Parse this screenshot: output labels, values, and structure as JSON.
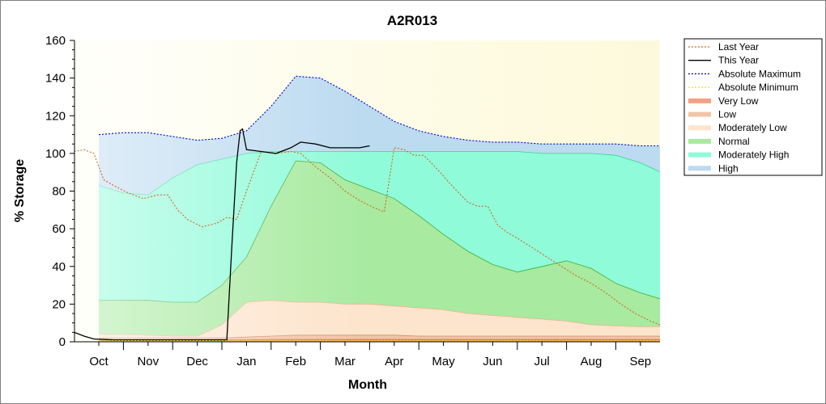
{
  "chart_data": {
    "type": "area",
    "title": "A2R013",
    "xlabel": "Month",
    "ylabel": "% Storage",
    "ylim": [
      0,
      160
    ],
    "xlim": [
      0,
      11.5
    ],
    "yticks": [
      0,
      20,
      40,
      60,
      80,
      100,
      120,
      140,
      160
    ],
    "categories": [
      "Oct",
      "Nov",
      "Dec",
      "Jan",
      "Feb",
      "Mar",
      "Apr",
      "May",
      "Jun",
      "Jul",
      "Aug",
      "Sep"
    ],
    "legend_position": "right",
    "background_colors": [
      "#fffff4",
      "#fdf9dc"
    ],
    "bands": [
      {
        "name": "High",
        "color": "#bcdaf0",
        "x": [
          0,
          0.5,
          1,
          1.5,
          2,
          2.5,
          3,
          3.5,
          4,
          4.5,
          5,
          5.5,
          6,
          6.5,
          7,
          7.5,
          8,
          8.5,
          9,
          9.5,
          10,
          10.5,
          11,
          11.5
        ],
        "values": [
          110,
          111,
          111,
          109,
          107,
          108,
          112,
          125,
          141,
          140,
          133,
          125,
          117,
          112,
          109,
          107,
          106,
          106,
          105,
          105,
          105,
          105,
          104,
          104
        ]
      },
      {
        "name": "Moderately High",
        "color": "#8ffbd9",
        "x": [
          0,
          0.5,
          1,
          1.5,
          2,
          2.5,
          3,
          3.5,
          4,
          4.5,
          5,
          5.5,
          6,
          6.5,
          7,
          7.5,
          8,
          8.5,
          9,
          9.5,
          10,
          10.5,
          11,
          11.5
        ],
        "values": [
          83,
          79,
          78,
          87,
          94,
          97,
          100,
          101,
          101,
          101,
          101,
          101,
          101,
          101,
          101,
          101,
          101,
          101,
          100,
          100,
          100,
          99,
          95,
          89
        ]
      },
      {
        "name": "Normal",
        "color": "#a8eaa0",
        "x": [
          0,
          0.5,
          1,
          1.5,
          2,
          2.5,
          3,
          3.5,
          4,
          4.5,
          5,
          5.5,
          6,
          6.5,
          7,
          7.5,
          8,
          8.5,
          9,
          9.5,
          10,
          10.5,
          11,
          11.5
        ],
        "values": [
          22,
          22,
          22,
          21,
          21,
          30,
          45,
          72,
          96,
          95,
          86,
          81,
          76,
          67,
          57,
          48,
          41,
          37,
          40,
          43,
          39,
          31,
          26,
          22
        ]
      },
      {
        "name": "Moderately Low",
        "color": "#fde4cc",
        "x": [
          0,
          0.5,
          1,
          1.5,
          2,
          2.5,
          3,
          3.5,
          4,
          4.5,
          5,
          5.5,
          6,
          6.5,
          7,
          7.5,
          8,
          8.5,
          9,
          9.5,
          10,
          10.5,
          11,
          11.5
        ],
        "values": [
          4,
          4,
          3.5,
          3,
          3,
          9,
          21,
          22,
          21,
          21,
          20,
          20,
          19,
          18,
          17,
          15,
          14,
          13,
          12,
          11,
          9,
          8.5,
          8,
          8
        ]
      },
      {
        "name": "Low",
        "color": "#f0c4a8",
        "x": [
          0,
          0.5,
          1,
          1.5,
          2,
          2.5,
          3,
          3.5,
          4,
          4.5,
          5,
          5.5,
          6,
          6.5,
          7,
          7.5,
          8,
          8.5,
          9,
          9.5,
          10,
          10.5,
          11,
          11.5
        ],
        "values": [
          2,
          2,
          2,
          2,
          2,
          2,
          2.5,
          3,
          3.5,
          3.5,
          3.5,
          3.5,
          3.5,
          3,
          3,
          3,
          3,
          3,
          3,
          3,
          3,
          3,
          3,
          3
        ]
      },
      {
        "name": "Very Low",
        "color": "#f4a080",
        "x": [
          0,
          0.5,
          1,
          1.5,
          2,
          2.5,
          3,
          3.5,
          4,
          4.5,
          5,
          5.5,
          6,
          6.5,
          7,
          7.5,
          8,
          8.5,
          9,
          9.5,
          10,
          10.5,
          11,
          11.5
        ],
        "values": [
          1,
          1,
          1,
          1,
          1,
          1,
          1,
          1.2,
          1.2,
          1.2,
          1.2,
          1.2,
          1.2,
          1.2,
          1.2,
          1.2,
          1.2,
          1.2,
          1.2,
          1.2,
          1.2,
          1.2,
          1.2,
          1.2
        ]
      }
    ],
    "series": [
      {
        "name": "Last Year",
        "color": "#d2691e",
        "style": "dotted",
        "x": [
          -0.5,
          -0.3,
          -0.1,
          0.1,
          0.3,
          0.6,
          0.9,
          1.2,
          1.4,
          1.6,
          1.8,
          2.1,
          2.4,
          2.6,
          2.8,
          3.0,
          3.3,
          3.6,
          3.9,
          4.1,
          4.4,
          4.7,
          5.0,
          5.3,
          5.6,
          5.8,
          6.0,
          6.2,
          6.4,
          6.6,
          6.9,
          7.2,
          7.5,
          7.7,
          7.9,
          8.1,
          8.3,
          8.5,
          8.8,
          9.1,
          9.4,
          9.7,
          10.0,
          10.3,
          10.6,
          10.9,
          11.2,
          11.5
        ],
        "values": [
          101,
          102,
          100,
          86,
          83,
          79,
          76,
          78,
          78,
          70,
          65,
          61,
          63,
          66,
          65,
          80,
          101,
          100,
          101,
          100,
          93,
          87,
          80,
          75,
          71,
          69,
          103,
          102,
          99,
          99,
          91,
          82,
          74,
          72,
          72,
          62,
          58,
          55,
          50,
          45,
          40,
          35,
          31,
          26,
          20,
          15,
          11,
          8
        ]
      },
      {
        "name": "This Year",
        "color": "#000000",
        "style": "solid",
        "x": [
          -0.5,
          -0.3,
          -0.1,
          0.3,
          1.0,
          1.5,
          2.0,
          2.2,
          2.6,
          2.7,
          2.8,
          2.87,
          2.92,
          3.0,
          3.3,
          3.6,
          3.9,
          4.1,
          4.4,
          4.7,
          5.0,
          5.3,
          5.5
        ],
        "values": [
          5,
          3,
          1.5,
          1,
          1,
          1,
          1,
          1,
          1,
          50,
          95,
          112,
          113,
          102,
          101,
          100,
          103,
          106,
          105,
          103,
          103,
          103,
          104
        ]
      },
      {
        "name": "Absolute Maximum",
        "color": "#0000cc",
        "style": "dotted",
        "band_ref": "High"
      },
      {
        "name": "Absolute Minimum",
        "color": "#e8e800",
        "style": "dotted",
        "x": [
          0,
          11.5
        ],
        "values": [
          0.6,
          0.6
        ]
      }
    ]
  }
}
